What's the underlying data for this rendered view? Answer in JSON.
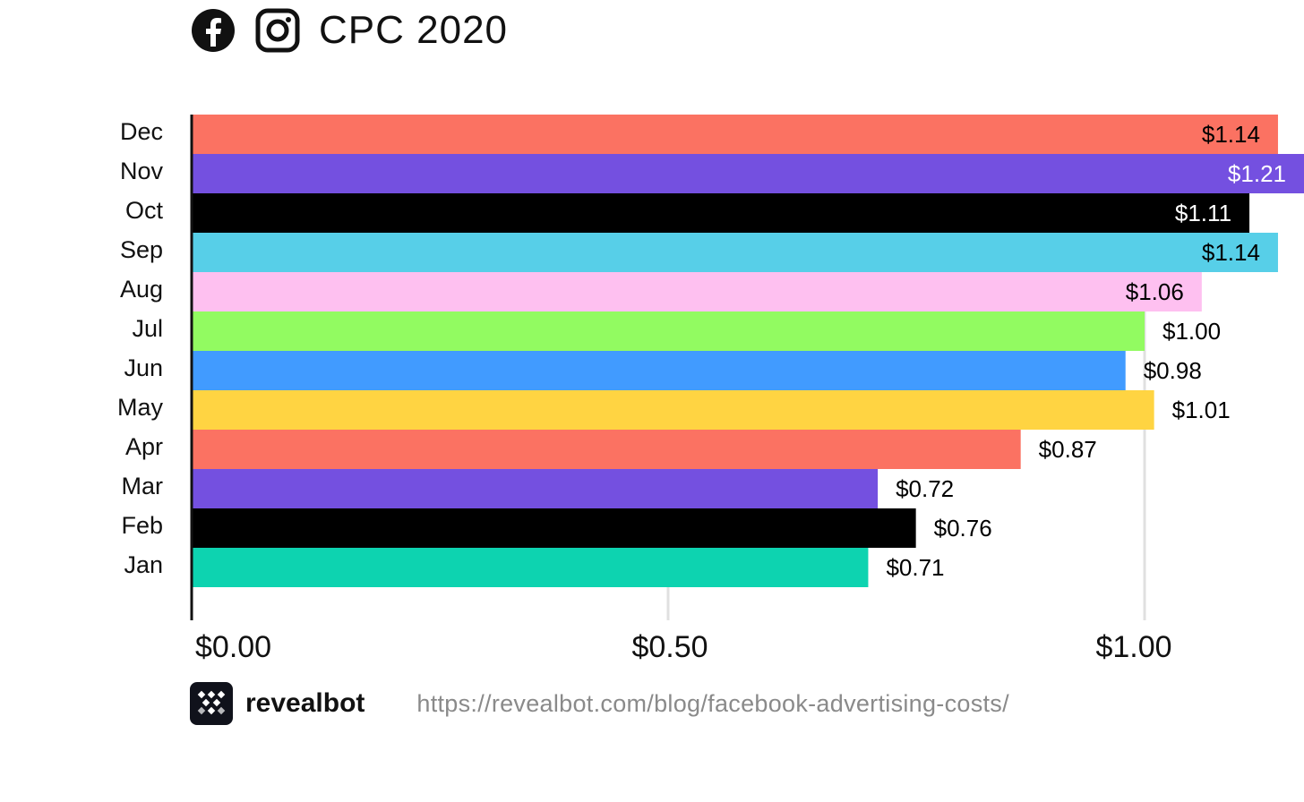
{
  "header": {
    "title": "CPC 2020",
    "icons": [
      "facebook-icon",
      "instagram-icon"
    ]
  },
  "chart_data": {
    "type": "bar",
    "orientation": "horizontal",
    "title": "CPC 2020",
    "xlabel": "",
    "ylabel": "",
    "categories": [
      "Dec",
      "Nov",
      "Oct",
      "Sep",
      "Aug",
      "Jul",
      "Jun",
      "May",
      "Apr",
      "Mar",
      "Feb",
      "Jan"
    ],
    "values": [
      1.14,
      1.21,
      1.11,
      1.14,
      1.06,
      1.0,
      0.98,
      1.01,
      0.87,
      0.72,
      0.76,
      0.71
    ],
    "labels": [
      "$1.14",
      "$1.21",
      "$1.11",
      "$1.14",
      "$1.06",
      "$1.00",
      "$0.98",
      "$1.01",
      "$0.87",
      "$0.72",
      "$0.76",
      "$0.71"
    ],
    "colors": [
      "#fb7262",
      "#7450e0",
      "#000000",
      "#57cfe8",
      "#fec0f0",
      "#92fb61",
      "#419bff",
      "#ffd442",
      "#fb7262",
      "#7450e0",
      "#000000",
      "#0dd3b0"
    ],
    "label_colors": [
      "#000000",
      "#ffffff",
      "#ffffff",
      "#000000",
      "#000000",
      "#000000",
      "#000000",
      "#000000",
      "#000000",
      "#000000",
      "#000000",
      "#000000"
    ],
    "xlim": [
      0,
      1.2
    ],
    "xticks": [
      0,
      0.5,
      1.0
    ],
    "xtick_labels": [
      "$0.00",
      "$0.50",
      "$1.00"
    ],
    "grid": true,
    "legend": "none"
  },
  "footer": {
    "brand": "revealbot",
    "url": "https://revealbot.com/blog/facebook-advertising-costs/",
    "logo_icon": "revealbot-logo-icon"
  }
}
